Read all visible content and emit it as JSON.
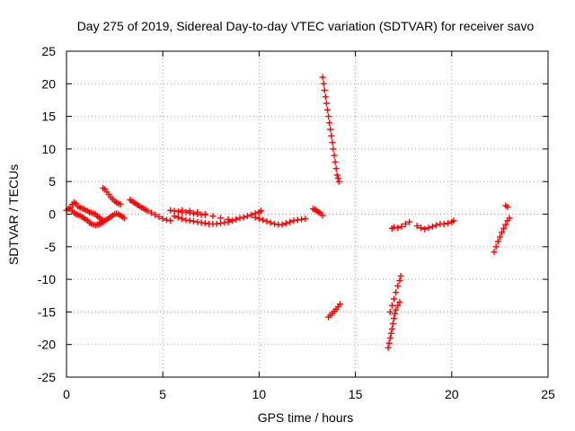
{
  "chart_data": {
    "type": "scatter",
    "title": "Day 275 of 2019, Sidereal Day-to-day VTEC variation (SDTVAR) for receiver savo",
    "xlabel": "GPS time / hours",
    "ylabel": "SDTVAR / TECUs",
    "xlim": [
      0,
      25
    ],
    "ylim": [
      -25,
      25
    ],
    "xticks": [
      0,
      5,
      10,
      15,
      20,
      25
    ],
    "yticks": [
      -25,
      -20,
      -15,
      -10,
      -5,
      0,
      5,
      10,
      15,
      20,
      25
    ],
    "grid": true,
    "marker": "+",
    "color": "#ff0000",
    "series": [
      {
        "points": [
          [
            0.0,
            0.6
          ],
          [
            0.1,
            0.8
          ],
          [
            0.2,
            1.0
          ],
          [
            0.3,
            1.5
          ],
          [
            0.4,
            1.8
          ],
          [
            0.5,
            1.6
          ],
          [
            0.6,
            1.2
          ],
          [
            0.7,
            1.0
          ],
          [
            0.8,
            0.9
          ],
          [
            0.9,
            0.8
          ],
          [
            1.0,
            0.6
          ],
          [
            1.1,
            0.5
          ],
          [
            1.2,
            0.3
          ],
          [
            1.3,
            0.2
          ],
          [
            1.4,
            0.1
          ],
          [
            1.5,
            0.0
          ],
          [
            1.6,
            -0.3
          ],
          [
            1.7,
            -0.5
          ],
          [
            1.8,
            -0.8
          ],
          [
            1.9,
            -1.0
          ],
          [
            0.3,
            0.5
          ],
          [
            0.4,
            0.2
          ],
          [
            0.5,
            0.0
          ],
          [
            0.6,
            -0.1
          ],
          [
            0.7,
            -0.2
          ],
          [
            0.8,
            -0.4
          ],
          [
            0.9,
            -0.6
          ],
          [
            1.0,
            -0.8
          ],
          [
            1.1,
            -1.0
          ],
          [
            1.2,
            -1.3
          ],
          [
            1.3,
            -1.5
          ],
          [
            1.4,
            -1.6
          ],
          [
            1.5,
            -1.7
          ],
          [
            1.6,
            -1.6
          ],
          [
            1.7,
            -1.5
          ],
          [
            1.8,
            -1.4
          ],
          [
            1.9,
            -1.2
          ],
          [
            2.0,
            -1.0
          ],
          [
            2.1,
            -0.8
          ],
          [
            2.2,
            -0.6
          ],
          [
            2.3,
            -0.4
          ],
          [
            2.4,
            -0.2
          ],
          [
            2.5,
            0.0
          ],
          [
            2.6,
            0.1
          ],
          [
            2.7,
            0.0
          ],
          [
            2.8,
            -0.2
          ],
          [
            2.9,
            -0.4
          ],
          [
            3.0,
            -0.6
          ],
          [
            1.9,
            4.0
          ],
          [
            2.0,
            3.8
          ],
          [
            2.1,
            3.4
          ],
          [
            2.2,
            3.0
          ],
          [
            2.3,
            2.6
          ],
          [
            2.4,
            2.3
          ],
          [
            2.5,
            2.0
          ],
          [
            2.6,
            1.8
          ],
          [
            2.7,
            1.6
          ],
          [
            2.8,
            1.5
          ],
          [
            3.3,
            2.2
          ],
          [
            3.4,
            2.0
          ],
          [
            3.5,
            1.8
          ],
          [
            3.6,
            1.6
          ],
          [
            3.7,
            1.4
          ],
          [
            3.8,
            1.2
          ],
          [
            3.9,
            1.0
          ],
          [
            4.0,
            0.9
          ],
          [
            4.1,
            0.7
          ],
          [
            4.2,
            0.5
          ],
          [
            4.4,
            0.2
          ],
          [
            4.6,
            -0.1
          ],
          [
            4.8,
            -0.4
          ],
          [
            5.0,
            -0.7
          ],
          [
            5.2,
            -0.9
          ],
          [
            5.4,
            -1.0
          ],
          [
            5.4,
            0.6
          ],
          [
            5.6,
            0.5
          ],
          [
            5.8,
            0.4
          ],
          [
            6.0,
            0.3
          ],
          [
            6.2,
            0.3
          ],
          [
            6.4,
            0.2
          ],
          [
            6.6,
            0.1
          ],
          [
            6.8,
            0.0
          ],
          [
            7.0,
            -0.1
          ],
          [
            7.2,
            -0.1
          ],
          [
            5.6,
            -0.3
          ],
          [
            5.8,
            -0.5
          ],
          [
            6.0,
            -0.7
          ],
          [
            6.2,
            -0.9
          ],
          [
            6.4,
            -1.0
          ],
          [
            6.6,
            -1.1
          ],
          [
            6.8,
            -1.2
          ],
          [
            7.0,
            -1.3
          ],
          [
            7.2,
            -1.4
          ],
          [
            7.4,
            -1.5
          ],
          [
            7.6,
            -1.5
          ],
          [
            7.8,
            -1.5
          ],
          [
            8.0,
            -1.4
          ],
          [
            8.2,
            -1.3
          ],
          [
            8.4,
            -1.2
          ],
          [
            8.6,
            -1.0
          ],
          [
            8.8,
            -0.8
          ],
          [
            9.0,
            -0.6
          ],
          [
            9.2,
            -0.5
          ],
          [
            9.4,
            -0.3
          ],
          [
            9.6,
            -0.1
          ],
          [
            9.8,
            0.1
          ],
          [
            10.0,
            0.3
          ],
          [
            10.1,
            0.5
          ],
          [
            6.0,
            0.6
          ],
          [
            6.4,
            0.5
          ],
          [
            6.8,
            0.3
          ],
          [
            7.2,
            0.0
          ],
          [
            7.6,
            -0.3
          ],
          [
            8.0,
            -0.6
          ],
          [
            8.4,
            -0.8
          ],
          [
            9.8,
            -0.5
          ],
          [
            10.0,
            -0.7
          ],
          [
            10.2,
            -0.9
          ],
          [
            10.4,
            -1.1
          ],
          [
            10.6,
            -1.3
          ],
          [
            10.8,
            -1.5
          ],
          [
            11.0,
            -1.6
          ],
          [
            11.2,
            -1.6
          ],
          [
            11.4,
            -1.4
          ],
          [
            11.6,
            -1.2
          ],
          [
            11.8,
            -1.0
          ],
          [
            12.0,
            -0.9
          ],
          [
            12.2,
            -0.8
          ],
          [
            12.4,
            -0.7
          ],
          [
            12.8,
            0.8
          ],
          [
            12.9,
            0.7
          ],
          [
            13.0,
            0.5
          ],
          [
            13.1,
            0.3
          ],
          [
            13.2,
            0.1
          ],
          [
            13.3,
            -0.2
          ],
          [
            13.3,
            21.0
          ],
          [
            13.35,
            20.0
          ],
          [
            13.4,
            19.0
          ],
          [
            13.45,
            18.0
          ],
          [
            13.5,
            17.0
          ],
          [
            13.55,
            16.0
          ],
          [
            13.6,
            15.0
          ],
          [
            13.65,
            14.0
          ],
          [
            13.7,
            13.0
          ],
          [
            13.75,
            12.0
          ],
          [
            13.8,
            11.0
          ],
          [
            13.85,
            10.0
          ],
          [
            13.9,
            9.0
          ],
          [
            13.95,
            8.0
          ],
          [
            14.0,
            7.0
          ],
          [
            14.05,
            6.0
          ],
          [
            14.1,
            5.5
          ],
          [
            14.15,
            5.0
          ],
          [
            13.6,
            -15.8
          ],
          [
            13.7,
            -15.5
          ],
          [
            13.8,
            -15.2
          ],
          [
            13.9,
            -14.9
          ],
          [
            14.0,
            -14.6
          ],
          [
            14.1,
            -14.2
          ],
          [
            14.2,
            -13.8
          ],
          [
            16.7,
            -20.5
          ],
          [
            16.75,
            -19.8
          ],
          [
            16.8,
            -19.0
          ],
          [
            16.85,
            -18.3
          ],
          [
            16.9,
            -17.6
          ],
          [
            16.95,
            -16.8
          ],
          [
            17.0,
            -16.0
          ],
          [
            17.05,
            -15.3
          ],
          [
            17.1,
            -14.7
          ],
          [
            17.2,
            -14.0
          ],
          [
            17.3,
            -13.5
          ],
          [
            16.8,
            -15.0
          ],
          [
            16.9,
            -14.0
          ],
          [
            17.0,
            -13.0
          ],
          [
            17.1,
            -12.0
          ],
          [
            17.2,
            -11.0
          ],
          [
            17.3,
            -10.2
          ],
          [
            17.35,
            -9.5
          ],
          [
            16.9,
            -2.2
          ],
          [
            17.0,
            -2.0
          ],
          [
            17.2,
            -2.1
          ],
          [
            17.4,
            -1.9
          ],
          [
            17.6,
            -1.5
          ],
          [
            17.8,
            -1.2
          ],
          [
            18.2,
            -1.8
          ],
          [
            18.4,
            -2.1
          ],
          [
            18.6,
            -2.3
          ],
          [
            18.8,
            -2.1
          ],
          [
            19.0,
            -1.9
          ],
          [
            19.2,
            -1.7
          ],
          [
            19.4,
            -1.5
          ],
          [
            19.6,
            -1.5
          ],
          [
            19.8,
            -1.4
          ],
          [
            20.0,
            -1.2
          ],
          [
            20.1,
            -1.0
          ],
          [
            22.2,
            -5.8
          ],
          [
            22.3,
            -5.0
          ],
          [
            22.4,
            -4.2
          ],
          [
            22.5,
            -3.5
          ],
          [
            22.6,
            -2.8
          ],
          [
            22.7,
            -2.2
          ],
          [
            22.8,
            -1.6
          ],
          [
            22.9,
            -1.0
          ],
          [
            23.0,
            -0.6
          ],
          [
            22.8,
            1.3
          ],
          [
            22.9,
            1.1
          ]
        ]
      }
    ]
  }
}
